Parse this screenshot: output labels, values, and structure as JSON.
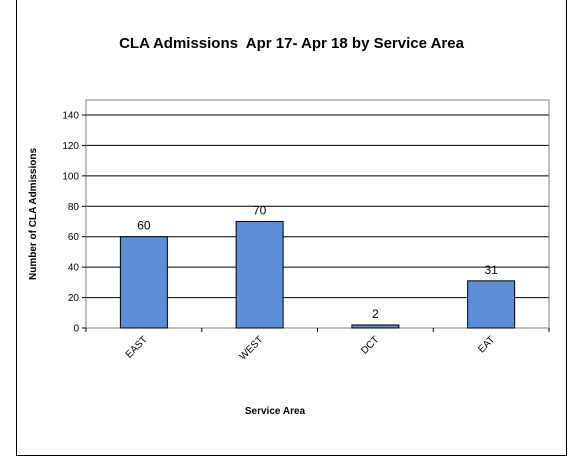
{
  "chart_data": {
    "type": "bar",
    "title": "CLA Admissions  Apr 17- Apr 18 by Service Area",
    "xlabel": "Service Area",
    "ylabel": "Number of CLA Admissions",
    "categories": [
      "EAST",
      "WEST",
      "DCT",
      "EAT"
    ],
    "values": [
      60,
      70,
      2,
      31
    ],
    "data_labels": [
      "60",
      "70",
      "2",
      "31"
    ],
    "ylim": [
      0,
      140
    ],
    "yticks": [
      0,
      20,
      40,
      60,
      80,
      100,
      120,
      140
    ],
    "ytick_labels": [
      "0",
      "20",
      "40",
      "60",
      "80",
      "100",
      "120",
      "140"
    ],
    "grid": true,
    "legend": "none",
    "bar_color": "#5B8DD9"
  }
}
